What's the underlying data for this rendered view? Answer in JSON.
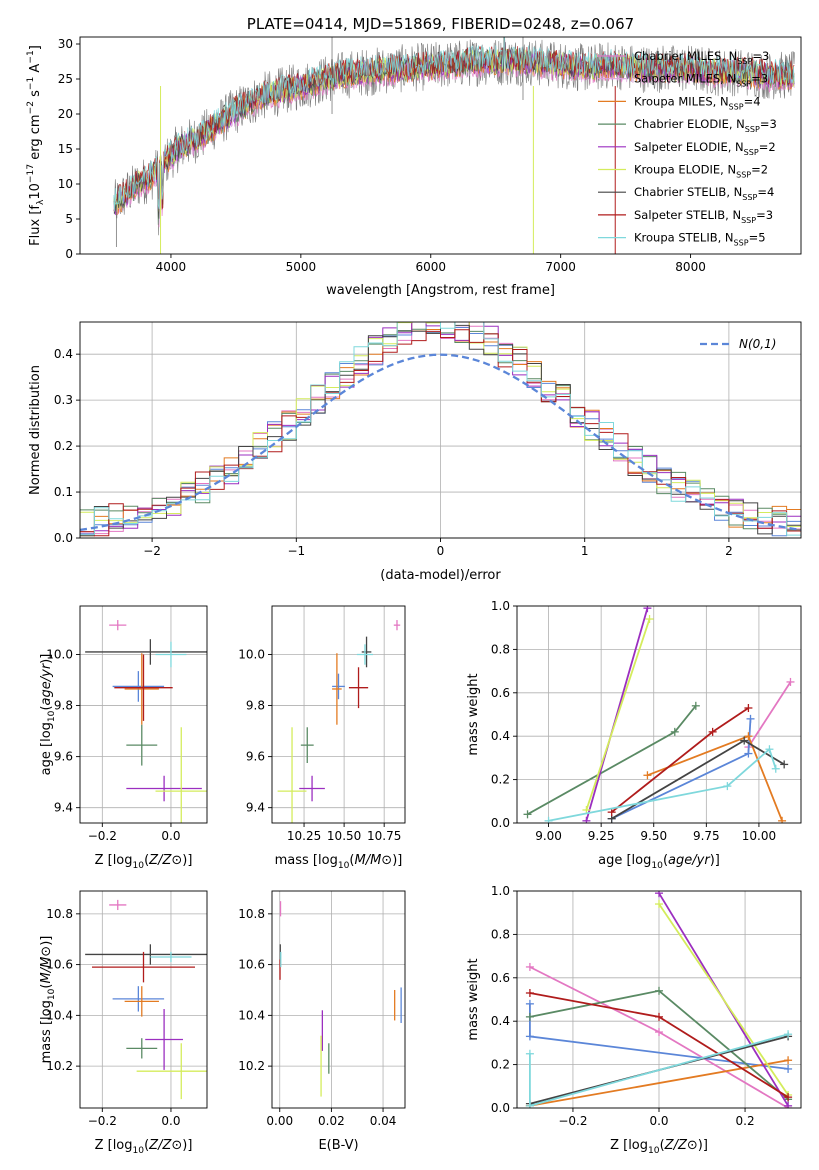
{
  "palette": {
    "grid": "#b0b0b0",
    "series_colors": [
      "#e377c2",
      "#dda0dd",
      "#e37b22",
      "#5a8a64",
      "#9b2fc0",
      "#d4ec5c",
      "#444444",
      "#b01c1c",
      "#7fd8dc"
    ],
    "estimate_colors": [
      "#e377c2",
      "#5b86d8",
      "#e37b22",
      "#5a8a64",
      "#9b2fc0",
      "#d4ec5c",
      "#444444",
      "#b01c1c",
      "#7fd8dc"
    ]
  },
  "chart_data": [
    {
      "id": "spectrum",
      "type": "line",
      "title": "PLATE=0414, MJD=51869, FIBERID=0248, z=0.067",
      "xlabel": "wavelength [Angstrom, rest frame]",
      "ylabel": "Flux [f_λ 10^-17 erg cm^-2 s^-1 A^-1]",
      "xlim": [
        3300,
        8850
      ],
      "ylim": [
        0,
        31
      ],
      "xticks": [
        4000,
        5000,
        6000,
        7000,
        8000
      ],
      "yticks": [
        0,
        5,
        10,
        15,
        20,
        25,
        30
      ],
      "grid": false,
      "legend": "upper right",
      "continuum": {
        "x": [
          3560,
          3650,
          3750,
          3850,
          3950,
          4050,
          4150,
          4250,
          4350,
          4500,
          4700,
          4900,
          5100,
          5300,
          5500,
          5800,
          6100,
          6400,
          6700,
          7000,
          7200,
          7400,
          7600,
          7800,
          8000,
          8200,
          8400,
          8600,
          8800
        ],
        "y": [
          7,
          8.5,
          10,
          11,
          13,
          15,
          16,
          17,
          18.5,
          20.5,
          22.5,
          23.5,
          24.5,
          25.5,
          26,
          26.5,
          27,
          27.5,
          27.5,
          27,
          26.5,
          27,
          26.5,
          26.5,
          26.5,
          26,
          26,
          25.5,
          25.5
        ]
      },
      "series": [
        {
          "name": "Chabrier MILES, N_SSP=3",
          "color": "#e377c2"
        },
        {
          "name": "Salpeter MILES, N_SSP=3",
          "color": "#dda0dd"
        },
        {
          "name": "Kroupa MILES, N_SSP=4",
          "color": "#e37b22"
        },
        {
          "name": "Chabrier ELODIE, N_SSP=3",
          "color": "#5a8a64"
        },
        {
          "name": "Salpeter ELODIE, N_SSP=2",
          "color": "#9b2fc0"
        },
        {
          "name": "Kroupa ELODIE, N_SSP=2",
          "color": "#d4ec5c"
        },
        {
          "name": "Chabrier STELIB, N_SSP=4",
          "color": "#444444"
        },
        {
          "name": "Salpeter STELIB, N_SSP=3",
          "color": "#b01c1c"
        },
        {
          "name": "Kroupa STELIB, N_SSP=5",
          "color": "#7fd8dc"
        }
      ]
    },
    {
      "id": "residuals",
      "type": "line",
      "xlabel": "(data-model)/error",
      "ylabel": "Normed distribution",
      "xlim": [
        -2.5,
        2.5
      ],
      "ylim": [
        0,
        0.47
      ],
      "xticks": [
        -2,
        -1,
        0,
        1,
        2
      ],
      "xtick_labels": [
        "−2",
        "−1",
        "0",
        "1",
        "2"
      ],
      "yticks": [
        0,
        0.1,
        0.2,
        0.3,
        0.4
      ],
      "grid": true,
      "legend": "upper right",
      "gaussian": {
        "label": "N(0,1)",
        "color": "#5b86d8",
        "mean": 0,
        "sigma": 1
      },
      "bins": {
        "start": -2.5,
        "width": 0.1,
        "count": 50
      }
    },
    {
      "id": "age-vs-Z",
      "type": "scatter",
      "xlabel": "Z [log10(Z/Z⊙)]",
      "ylabel": "age  [log10(age/yr)]",
      "xlim": [
        -0.265,
        0.105
      ],
      "ylim": [
        9.34,
        10.19
      ],
      "xticks": [
        -0.2,
        0.0
      ],
      "xtick_labels": [
        "−0.2",
        "0.0"
      ],
      "yticks": [
        9.4,
        9.6,
        9.8,
        10.0
      ],
      "grid": true,
      "points": [
        {
          "x": -0.155,
          "y": 10.115,
          "xerr": 0.025,
          "yerr": 0.02,
          "color": "#e377c2"
        },
        {
          "x": -0.095,
          "y": 9.875,
          "xerr": 0.075,
          "yerr": 0.06,
          "color": "#5b86d8"
        },
        {
          "x": -0.085,
          "y": 9.865,
          "xerr": 0.05,
          "yerr": 0.14,
          "color": "#e37b22"
        },
        {
          "x": -0.085,
          "y": 9.645,
          "xerr": 0.045,
          "yerr": 0.08,
          "color": "#5a8a64"
        },
        {
          "x": -0.02,
          "y": 9.475,
          "xerr": 0.11,
          "yerr": 0.05,
          "color": "#9b2fc0"
        },
        {
          "x": 0.03,
          "y": 9.465,
          "xerr": 0.075,
          "yerr": 0.25,
          "color": "#d4ec5c"
        },
        {
          "x": -0.06,
          "y": 10.01,
          "xerr": 0.19,
          "yerr": 0.05,
          "color": "#444444"
        },
        {
          "x": -0.08,
          "y": 9.87,
          "xerr": 0.085,
          "yerr": 0.13,
          "color": "#b01c1c"
        },
        {
          "x": 0.0,
          "y": 10.0,
          "xerr": 0.045,
          "yerr": 0.05,
          "color": "#7fd8dc"
        }
      ]
    },
    {
      "id": "age-vs-mass",
      "type": "scatter",
      "xlabel": "mass [log10(M/M⊙)]",
      "xlim": [
        10.05,
        10.88
      ],
      "ylim": [
        9.34,
        10.19
      ],
      "xticks": [
        10.25,
        10.5,
        10.75
      ],
      "xtick_labels": [
        "10.25",
        "10.50",
        "10.75"
      ],
      "yticks": [
        9.4,
        9.6,
        9.8,
        10.0
      ],
      "grid": true,
      "points": [
        {
          "x": 10.83,
          "y": 10.115,
          "xerr": 0.02,
          "yerr": 0.02,
          "color": "#e377c2"
        },
        {
          "x": 10.465,
          "y": 9.875,
          "xerr": 0.04,
          "yerr": 0.05,
          "color": "#5b86d8"
        },
        {
          "x": 10.455,
          "y": 9.865,
          "xerr": 0.03,
          "yerr": 0.14,
          "color": "#e37b22"
        },
        {
          "x": 10.27,
          "y": 9.645,
          "xerr": 0.04,
          "yerr": 0.07,
          "color": "#5a8a64"
        },
        {
          "x": 10.3,
          "y": 9.475,
          "xerr": 0.08,
          "yerr": 0.05,
          "color": "#9b2fc0"
        },
        {
          "x": 10.175,
          "y": 9.465,
          "xerr": 0.09,
          "yerr": 0.25,
          "color": "#d4ec5c"
        },
        {
          "x": 10.64,
          "y": 10.01,
          "xerr": 0.03,
          "yerr": 0.06,
          "color": "#444444"
        },
        {
          "x": 10.59,
          "y": 9.87,
          "xerr": 0.06,
          "yerr": 0.08,
          "color": "#b01c1c"
        },
        {
          "x": 10.63,
          "y": 10.0,
          "xerr": 0.05,
          "yerr": 0.04,
          "color": "#7fd8dc"
        }
      ]
    },
    {
      "id": "mass-weight-vs-age",
      "type": "line",
      "xlabel": "age  [log10(age/yr)]",
      "ylabel": "mass weight",
      "xlim": [
        8.85,
        10.2
      ],
      "ylim": [
        0,
        1.0
      ],
      "xticks": [
        9.0,
        9.25,
        9.5,
        9.75,
        10.0
      ],
      "xtick_labels": [
        "9.00",
        "9.25",
        "9.50",
        "9.75",
        "10.00"
      ],
      "yticks": [
        0,
        0.2,
        0.4,
        0.6,
        0.8,
        1.0
      ],
      "grid": true,
      "series": [
        {
          "color": "#e377c2",
          "x": [
            9.95,
            10.15
          ],
          "y": [
            0.35,
            0.65
          ]
        },
        {
          "color": "#5b86d8",
          "x": [
            9.3,
            9.95,
            9.96
          ],
          "y": [
            0.02,
            0.32,
            0.48
          ]
        },
        {
          "color": "#e37b22",
          "x": [
            9.47,
            9.95,
            10.11
          ],
          "y": [
            0.22,
            0.4,
            0.01
          ]
        },
        {
          "color": "#5a8a64",
          "x": [
            8.9,
            9.6,
            9.7
          ],
          "y": [
            0.04,
            0.42,
            0.54
          ]
        },
        {
          "color": "#9b2fc0",
          "x": [
            9.18,
            9.47
          ],
          "y": [
            0.01,
            0.99
          ]
        },
        {
          "color": "#d4ec5c",
          "x": [
            9.18,
            9.48
          ],
          "y": [
            0.06,
            0.94
          ]
        },
        {
          "color": "#444444",
          "x": [
            9.3,
            9.93,
            10.12
          ],
          "y": [
            0.02,
            0.38,
            0.27
          ]
        },
        {
          "color": "#b01c1c",
          "x": [
            9.3,
            9.78,
            9.95
          ],
          "y": [
            0.05,
            0.42,
            0.53
          ]
        },
        {
          "color": "#7fd8dc",
          "x": [
            9.0,
            9.85,
            10.05,
            10.08
          ],
          "y": [
            0.01,
            0.17,
            0.34,
            0.25
          ]
        }
      ]
    },
    {
      "id": "mass-vs-Z",
      "type": "scatter",
      "xlabel": "Z [log10(Z/Z⊙)]",
      "ylabel": "mass [log10(M/M⊙)]",
      "xlim": [
        -0.265,
        0.105
      ],
      "ylim": [
        10.035,
        10.89
      ],
      "xticks": [
        -0.2,
        0.0
      ],
      "xtick_labels": [
        "−0.2",
        "0.0"
      ],
      "yticks": [
        10.2,
        10.4,
        10.6,
        10.8
      ],
      "grid": true,
      "points": [
        {
          "x": -0.155,
          "y": 10.835,
          "xerr": 0.025,
          "yerr": 0.02,
          "color": "#e377c2"
        },
        {
          "x": -0.095,
          "y": 10.465,
          "xerr": 0.075,
          "yerr": 0.05,
          "color": "#5b86d8"
        },
        {
          "x": -0.085,
          "y": 10.455,
          "xerr": 0.05,
          "yerr": 0.06,
          "color": "#e37b22"
        },
        {
          "x": -0.085,
          "y": 10.27,
          "xerr": 0.045,
          "yerr": 0.04,
          "color": "#5a8a64"
        },
        {
          "x": -0.02,
          "y": 10.305,
          "xerr": 0.055,
          "yerr": 0.12,
          "color": "#9b2fc0"
        },
        {
          "x": 0.03,
          "y": 10.18,
          "xerr": 0.13,
          "yerr": 0.11,
          "color": "#d4ec5c"
        },
        {
          "x": -0.06,
          "y": 10.64,
          "xerr": 0.19,
          "yerr": 0.04,
          "color": "#444444"
        },
        {
          "x": -0.08,
          "y": 10.59,
          "xerr": 0.15,
          "yerr": 0.06,
          "color": "#b01c1c"
        },
        {
          "x": 0.0,
          "y": 10.63,
          "xerr": 0.06,
          "yerr": 0.02,
          "color": "#7fd8dc"
        }
      ]
    },
    {
      "id": "mass-vs-ebv",
      "type": "scatter",
      "xlabel": "E(B-V)",
      "xlim": [
        -0.003,
        0.0485
      ],
      "ylim": [
        10.035,
        10.89
      ],
      "xticks": [
        0.0,
        0.02,
        0.04
      ],
      "xtick_labels": [
        "0.00",
        "0.02",
        "0.04"
      ],
      "yticks": [
        10.2,
        10.4,
        10.6,
        10.8
      ],
      "grid": true,
      "points": [
        {
          "x": 0.0003,
          "y": 10.82,
          "xerr": 0,
          "yerr": 0.03,
          "color": "#e377c2"
        },
        {
          "x": 0.047,
          "y": 10.44,
          "xerr": 0,
          "yerr": 0.07,
          "color": "#5b86d8"
        },
        {
          "x": 0.0445,
          "y": 10.44,
          "xerr": 0,
          "yerr": 0.06,
          "color": "#e37b22"
        },
        {
          "x": 0.019,
          "y": 10.23,
          "xerr": 0,
          "yerr": 0.06,
          "color": "#5a8a64"
        },
        {
          "x": 0.0165,
          "y": 10.34,
          "xerr": 0,
          "yerr": 0.08,
          "color": "#9b2fc0"
        },
        {
          "x": 0.016,
          "y": 10.2,
          "xerr": 0,
          "yerr": 0.12,
          "color": "#d4ec5c"
        },
        {
          "x": 0.0002,
          "y": 10.64,
          "xerr": 0,
          "yerr": 0.04,
          "color": "#444444"
        },
        {
          "x": 0.0001,
          "y": 10.58,
          "xerr": 0,
          "yerr": 0.04,
          "color": "#b01c1c"
        },
        {
          "x": 0.0004,
          "y": 10.62,
          "xerr": 0,
          "yerr": 0.03,
          "color": "#7fd8dc"
        }
      ]
    },
    {
      "id": "mass-weight-vs-Z",
      "type": "line",
      "xlabel": "Z [log10(Z/Z⊙)]",
      "ylabel": "mass weight",
      "xlim": [
        -0.33,
        0.33
      ],
      "ylim": [
        0,
        1.0
      ],
      "xticks": [
        -0.2,
        0.0,
        0.2
      ],
      "xtick_labels": [
        "−0.2",
        "0.0",
        "0.2"
      ],
      "yticks": [
        0,
        0.2,
        0.4,
        0.6,
        0.8,
        1.0
      ],
      "grid": true,
      "series": [
        {
          "color": "#e377c2",
          "x": [
            -0.3,
            0.0,
            0.3
          ],
          "y": [
            0.65,
            0.35,
            0.0
          ]
        },
        {
          "color": "#5b86d8",
          "x": [
            -0.3,
            -0.3,
            0.3
          ],
          "y": [
            0.48,
            0.33,
            0.18
          ]
        },
        {
          "color": "#e37b22",
          "x": [
            -0.3,
            -0.3,
            0.3
          ],
          "y": [
            0.01,
            0.01,
            0.22
          ]
        },
        {
          "color": "#5a8a64",
          "x": [
            -0.3,
            0.0,
            0.3
          ],
          "y": [
            0.42,
            0.54,
            0.04
          ]
        },
        {
          "color": "#9b2fc0",
          "x": [
            0.0,
            0.3
          ],
          "y": [
            0.99,
            0.01
          ]
        },
        {
          "color": "#d4ec5c",
          "x": [
            0.0,
            0.3
          ],
          "y": [
            0.94,
            0.06
          ]
        },
        {
          "color": "#444444",
          "x": [
            -0.3,
            0.3
          ],
          "y": [
            0.02,
            0.33
          ]
        },
        {
          "color": "#b01c1c",
          "x": [
            -0.3,
            0.0,
            0.3
          ],
          "y": [
            0.53,
            0.42,
            0.05
          ]
        },
        {
          "color": "#7fd8dc",
          "x": [
            -0.3,
            -0.3,
            0.3
          ],
          "y": [
            0.25,
            0.01,
            0.34
          ]
        }
      ]
    }
  ]
}
